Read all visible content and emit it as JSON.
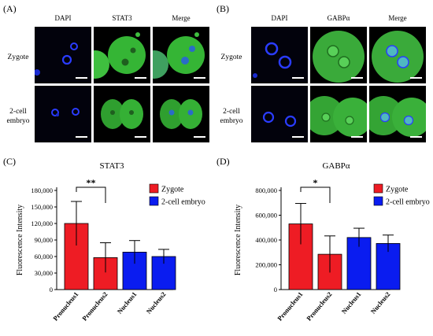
{
  "panels": {
    "A": {
      "letter": "(A)",
      "columns": [
        "DAPI",
        "STAT3",
        "Merge"
      ],
      "rows": [
        "Zygote",
        "2-cell embryo"
      ]
    },
    "B": {
      "letter": "(B)",
      "columns": [
        "DAPI",
        "GABPα",
        "Merge"
      ],
      "rows": [
        "Zygote",
        "2-cell embryo"
      ]
    },
    "C": {
      "letter": "(C)"
    },
    "D": {
      "letter": "(D)"
    }
  },
  "colors": {
    "zygote": "#ee1c24",
    "two_cell": "#0a1cf0",
    "dapi": "#2a3cff",
    "protein": "#3fbf3f"
  },
  "chart_data": [
    {
      "type": "bar",
      "title": "STAT3",
      "ylabel": "Fluorescence Intensity",
      "xlabel": "",
      "categories": [
        "Pronucleus1",
        "Pronucleus2",
        "Nucleus1",
        "Nucleus2"
      ],
      "values": [
        120000,
        58000,
        68000,
        60000
      ],
      "errors": [
        40000,
        27000,
        21000,
        13000
      ],
      "bar_series": [
        "Zygote",
        "Zygote",
        "2-cell embryo",
        "2-cell embryo"
      ],
      "ylim": [
        0,
        180000
      ],
      "yticks": [
        "0",
        "30,000",
        "60,000",
        "90,000",
        "120,000",
        "150,000",
        "180,000"
      ],
      "legend": [
        "Zygote",
        "2-cell embryo"
      ],
      "legend_position": "top-right",
      "significance": {
        "from": "Pronucleus1",
        "to": "Pronucleus2",
        "label": "**"
      }
    },
    {
      "type": "bar",
      "title": "GABPα",
      "ylabel": "Fluorescence Intensity",
      "xlabel": "",
      "categories": [
        "Pronucleus1",
        "Pronucleus2",
        "Nucleus1",
        "Nucleus2"
      ],
      "values": [
        530000,
        285000,
        420000,
        372000
      ],
      "errors": [
        165000,
        148000,
        75000,
        68000
      ],
      "bar_series": [
        "Zygote",
        "Zygote",
        "2-cell embryo",
        "2-cell embryo"
      ],
      "ylim": [
        0,
        800000
      ],
      "yticks": [
        "0",
        "200,000",
        "400,000",
        "600,000",
        "800,000"
      ],
      "legend": [
        "Zygote",
        "2-cell embryo"
      ],
      "legend_position": "top-right",
      "significance": {
        "from": "Pronucleus1",
        "to": "Pronucleus2",
        "label": "*"
      }
    }
  ]
}
